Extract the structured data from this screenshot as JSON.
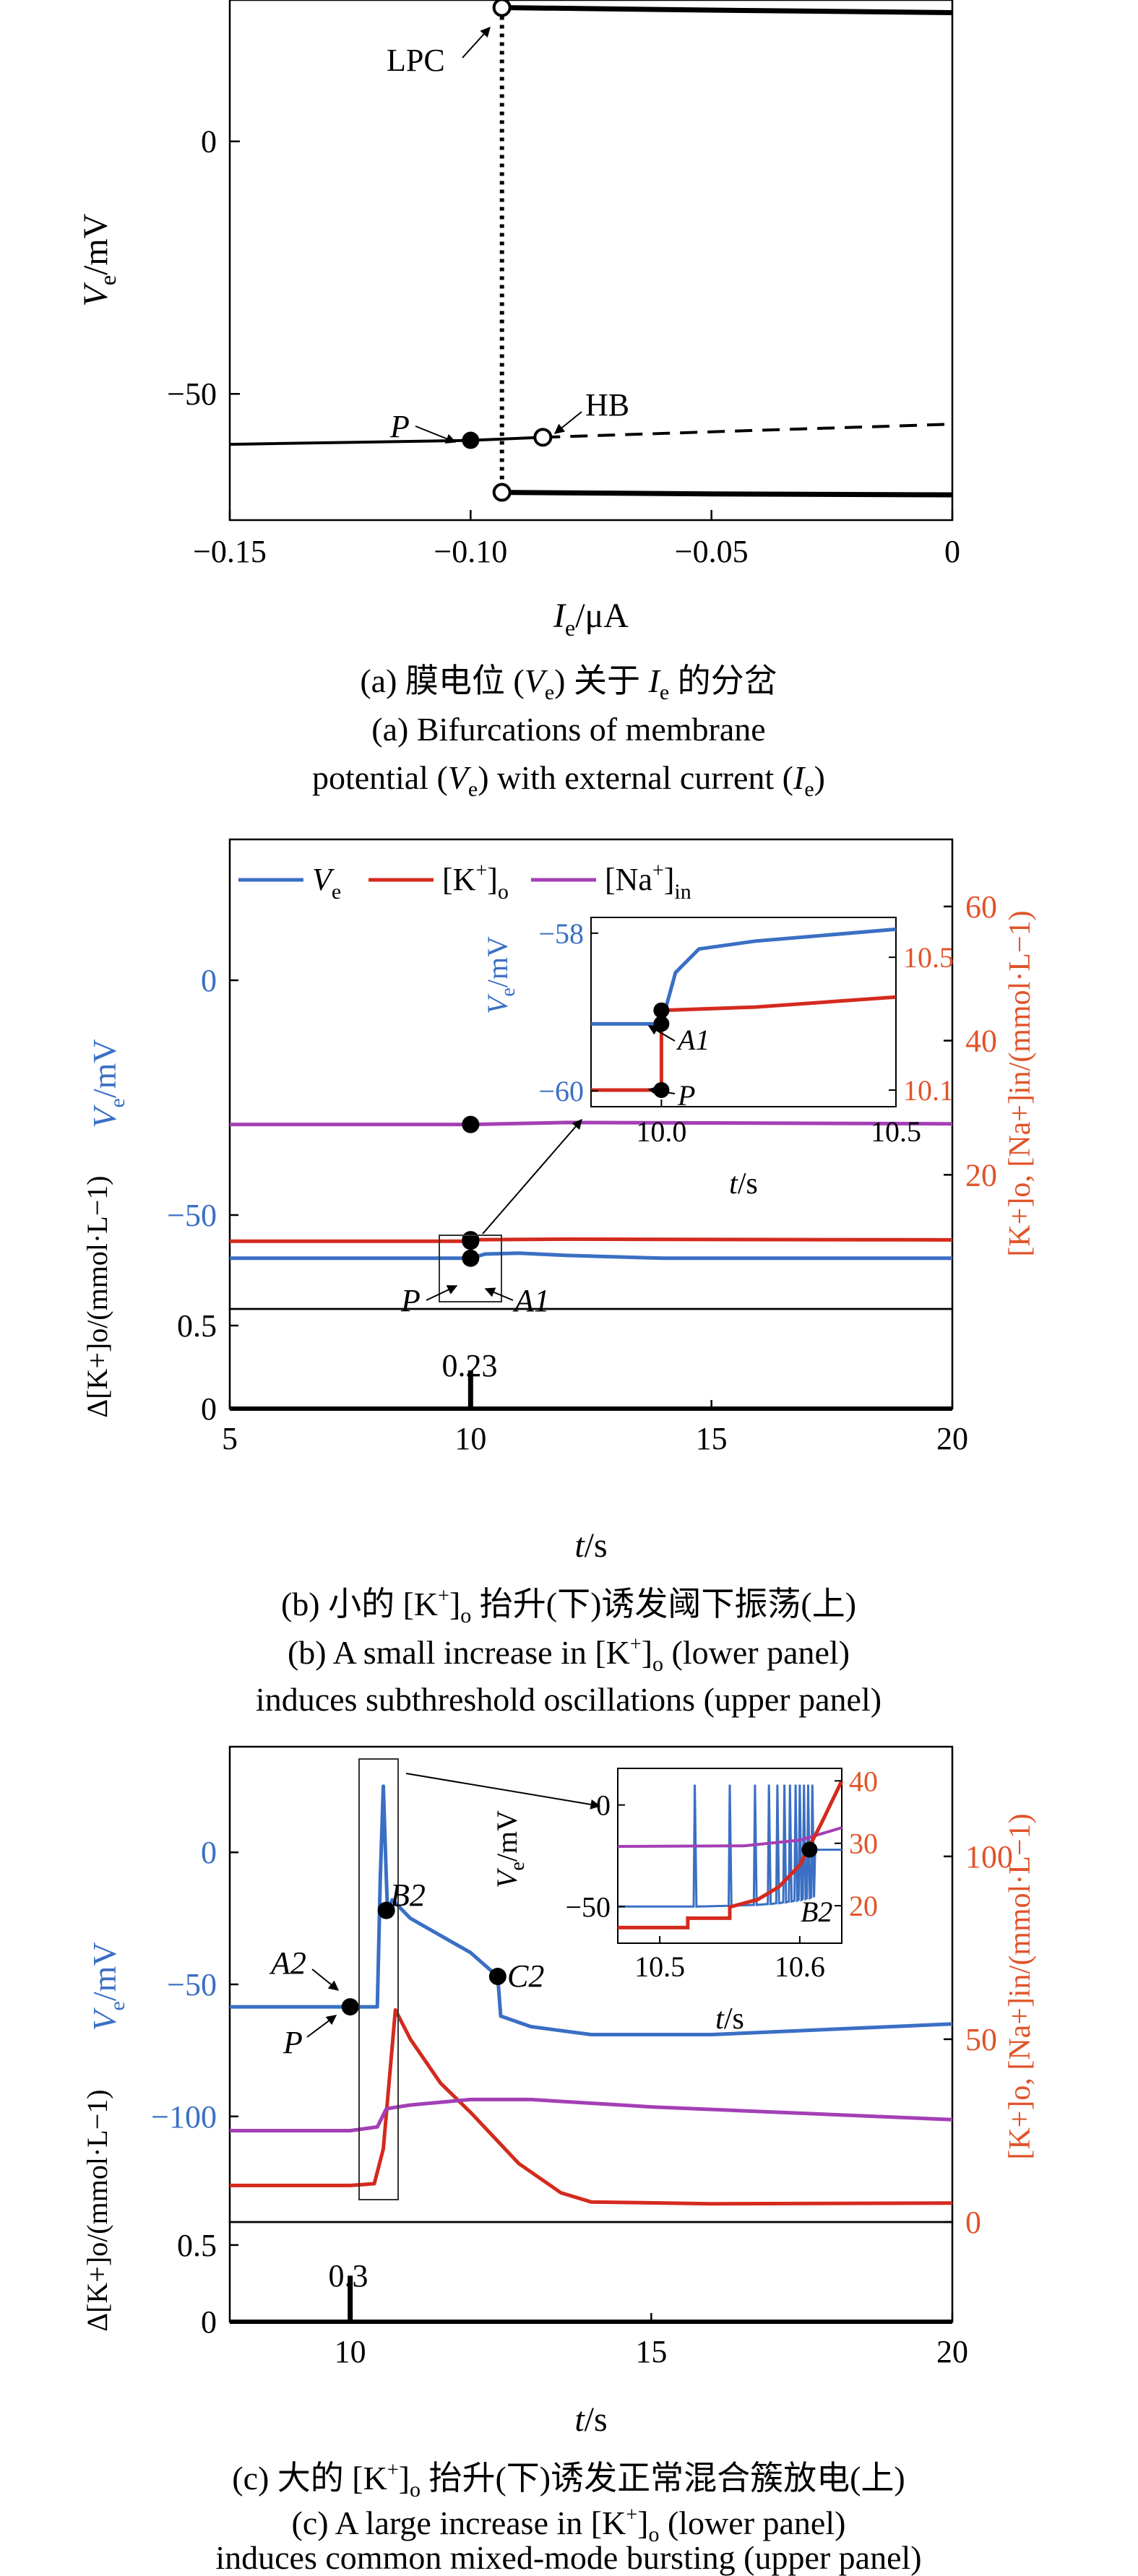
{
  "colors": {
    "ve": "#3a6fc4",
    "ko": "#d42a1e",
    "na": "#a33fb5",
    "black": "#000000",
    "right_axis": "#e0542a"
  },
  "chart_data": [
    {
      "type": "line",
      "panel": "a",
      "xlabel_main": "I",
      "xlabel_sub": "e",
      "xlabel_unit": "/μA",
      "ylabel_main": "V",
      "ylabel_sub": "e",
      "ylabel_unit": "/mV",
      "xlim": [
        -0.15,
        0
      ],
      "ylim": [
        -75,
        28
      ],
      "xticks": [
        -0.15,
        -0.1,
        -0.05,
        0
      ],
      "xtick_labels": [
        "−0.15",
        "−0.10",
        "−0.05",
        "0"
      ],
      "yticks": [
        0,
        -50
      ],
      "ytick_labels": [
        "0",
        "−50"
      ],
      "series": [
        {
          "style": "stable-rest",
          "x": [
            -0.15,
            -0.1,
            -0.085
          ],
          "y": [
            -60,
            -59.2,
            -58.6
          ]
        },
        {
          "style": "unstable-rest",
          "x": [
            -0.085,
            -0.04,
            0
          ],
          "y": [
            -58.6,
            -57.2,
            -56
          ]
        },
        {
          "style": "max-stable",
          "x": [
            -0.0935,
            -0.05,
            0
          ],
          "y": [
            26.5,
            26,
            25.5
          ]
        },
        {
          "style": "min-stable",
          "x": [
            -0.0935,
            -0.05,
            0
          ],
          "y": [
            -69.5,
            -69.8,
            -70
          ]
        },
        {
          "style": "unstable-cycle",
          "x": [
            -0.0935,
            -0.0935
          ],
          "y": [
            26.5,
            -69.5
          ]
        }
      ],
      "points": [
        {
          "label": "LPC",
          "x": -0.0935,
          "y": 26.5,
          "marker": "open"
        },
        {
          "label": "P",
          "x": -0.1,
          "y": -59.2,
          "marker": "filled"
        },
        {
          "label": "HB",
          "x": -0.085,
          "y": -58.6,
          "marker": "open"
        },
        {
          "label": "",
          "x": -0.0935,
          "y": -69.5,
          "marker": "open"
        }
      ],
      "caption_zh_prefix": "(a) 膜电位 (",
      "caption_zh_var": "V",
      "caption_zh_sub": "e",
      "caption_zh_mid": ") 关于 ",
      "caption_zh_var2": "I",
      "caption_zh_sub2": "e",
      "caption_zh_suffix": " 的分岔",
      "caption_en_1": "(a) Bifurcations of membrane",
      "caption_en_2a": "potential (",
      "caption_en_2b": "V",
      "caption_en_2c": "e",
      "caption_en_2d": ") with external current (",
      "caption_en_2e": "I",
      "caption_en_2f": "e",
      "caption_en_2g": ")"
    },
    {
      "type": "line",
      "panel": "b",
      "legend": [
        "V",
        "[K",
        "[Na"
      ],
      "legend_sub": [
        "e",
        "o",
        "in"
      ],
      "legend_sup": [
        "",
        "+",
        "+"
      ],
      "xlim": [
        5,
        20
      ],
      "xticks": [
        5,
        10,
        15,
        20
      ],
      "xtick_labels": [
        "5",
        "10",
        "15",
        "20"
      ],
      "upper": {
        "ylim_left": [
          -70,
          30
        ],
        "yticks_left": [
          0,
          -50
        ],
        "ytick_labels_left": [
          "0",
          "−50"
        ],
        "ylim_right": [
          0,
          70
        ],
        "yticks_right": [
          20,
          40,
          60
        ],
        "ytick_labels_right": [
          "20",
          "40",
          "60"
        ],
        "ylabel_left": "V",
        "ylabel_left_sub": "e",
        "ylabel_left_unit": "/mV",
        "ylabel_right": "[K+]o, [Na+]in/(mmol·L−1)",
        "series": [
          {
            "name": "Ve",
            "x": [
              5,
              10,
              10.3,
              11,
              12,
              14,
              16,
              20
            ],
            "y": [
              -59.2,
              -59.2,
              -58.3,
              -58.1,
              -58.6,
              -59.2,
              -59.2,
              -59.2
            ]
          },
          {
            "name": "[K+]o",
            "x": [
              5,
              10,
              10.2,
              12,
              20
            ],
            "y": [
              10.1,
              10.1,
              10.33,
              10.4,
              10.3
            ]
          },
          {
            "name": "[Na+]in",
            "x": [
              5,
              10,
              12,
              20
            ],
            "y": [
              27.5,
              27.5,
              27.8,
              27.6
            ]
          }
        ],
        "points": [
          {
            "label": "P",
            "series": "[K+]o",
            "x": 10,
            "y": 10.1
          },
          {
            "label": "A1",
            "series": "[K+]o",
            "x": 10,
            "y": 10.33
          },
          {
            "label": "",
            "series": "Ve",
            "x": 10,
            "y": -59.2
          },
          {
            "label": "",
            "series": "[Na+]in",
            "x": 10,
            "y": 27.5
          }
        ],
        "inset": {
          "xlim": [
            9.85,
            10.5
          ],
          "xticks": [
            10.0,
            10.5
          ],
          "xtick_labels": [
            "10.0",
            "10.5"
          ],
          "ylim_left": [
            -60.2,
            -57.8
          ],
          "yticks_left": [
            -58,
            -60
          ],
          "ytick_labels_left": [
            "−58",
            "−60"
          ],
          "ylim_right": [
            10.05,
            10.62
          ],
          "yticks_right": [
            10.5,
            10.1
          ],
          "ytick_labels_right": [
            "10.5",
            "10.1"
          ],
          "xlabel": "t",
          "xlabel_unit": "/s",
          "ve": {
            "x": [
              9.85,
              10.0,
              10.03,
              10.08,
              10.2,
              10.5
            ],
            "y": [
              -59.15,
              -59.15,
              -58.5,
              -58.2,
              -58.1,
              -57.95
            ]
          },
          "ko": {
            "x": [
              9.85,
              10.0,
              10.0,
              10.2,
              10.5
            ],
            "y": [
              10.1,
              10.1,
              10.34,
              10.35,
              10.38
            ]
          },
          "points": [
            {
              "label": "",
              "axis": "left",
              "x": 10.0,
              "y": -59.15
            },
            {
              "label": "A1",
              "axis": "right",
              "x": 10.0,
              "y": 10.34
            },
            {
              "label": "P",
              "axis": "right",
              "x": 10.0,
              "y": 10.1
            }
          ]
        }
      },
      "lower": {
        "ylabel": "Δ[K+]o/(mmol·L−1)",
        "ylim": [
          0,
          0.6
        ],
        "yticks": [
          0,
          0.5
        ],
        "ytick_labels": [
          "0",
          "0.5"
        ],
        "pulse": {
          "x": 10,
          "value": 0.23,
          "label": "0.23"
        }
      },
      "xlabel": "t",
      "xlabel_unit": "/s",
      "caption_zh_a": "(b) 小的 [K",
      "caption_zh_b": "+",
      "caption_zh_c": "]",
      "caption_zh_d": "o",
      "caption_zh_e": " 抬升(下)诱发阈下振荡(上)",
      "caption_en_1a": "(b) A small increase in [K",
      "caption_en_1b": "+",
      "caption_en_1c": "]",
      "caption_en_1d": "o",
      "caption_en_1e": " (lower panel)",
      "caption_en_2": "induces subthreshold oscillations (upper panel)"
    },
    {
      "type": "line",
      "panel": "c",
      "xlim": [
        8,
        20
      ],
      "xticks": [
        10,
        15,
        20
      ],
      "xtick_labels": [
        "10",
        "15",
        "20"
      ],
      "upper": {
        "ylim_left": [
          -140,
          40
        ],
        "yticks_left": [
          0,
          -50,
          -100
        ],
        "ytick_labels_left": [
          "0",
          "−50",
          "−100"
        ],
        "ylim_right": [
          0,
          130
        ],
        "yticks_right": [
          0,
          50,
          100
        ],
        "ytick_labels_right": [
          "0",
          "50",
          "100"
        ],
        "ylabel_left": "V",
        "ylabel_left_sub": "e",
        "ylabel_left_unit": "/mV",
        "ylabel_right": "[K+]o, [Na+]in/(mmol·L−1)",
        "series": [
          {
            "name": "Ve",
            "x": [
              8,
              10,
              10.45,
              10.5,
              10.55,
              10.6,
              10.62,
              10.7,
              11,
              12,
              12.45,
              12.5,
              13,
              14,
              16,
              20
            ],
            "y": [
              -58.5,
              -58.5,
              -58.5,
              -10,
              25,
              -10,
              -22,
              -18,
              -25,
              -38,
              -47,
              -62,
              -66,
              -69,
              -69,
              -65
            ]
          },
          {
            "name": "[K+]o",
            "x": [
              8,
              10,
              10.4,
              10.55,
              10.75,
              11,
              11.5,
              12,
              12.8,
              13.5,
              14,
              16,
              20
            ],
            "y": [
              10,
              10,
              10.5,
              20,
              58,
              50,
              38,
              30,
              16,
              8,
              5.5,
              5,
              5.2
            ]
          },
          {
            "name": "[Na+]in",
            "x": [
              8,
              10,
              10.45,
              10.6,
              11,
              12,
              13,
              15,
              20
            ],
            "y": [
              25,
              25,
              26,
              31,
              32,
              33.5,
              33.5,
              31.5,
              28
            ]
          }
        ],
        "points": [
          {
            "label": "P",
            "series": "Ve",
            "x": 10,
            "y": -58.5
          },
          {
            "label": "A2",
            "series": "Ve",
            "x": 10,
            "y": -58.5
          },
          {
            "label": "B2",
            "series": "Ve",
            "x": 10.6,
            "y": -22
          },
          {
            "label": "C2",
            "series": "Ve",
            "x": 12.45,
            "y": -47
          }
        ],
        "inset": {
          "xlim": [
            10.47,
            10.63
          ],
          "xticks": [
            10.5,
            10.6
          ],
          "xtick_labels": [
            "10.5",
            "10.6"
          ],
          "ylim_left": [
            -68,
            18
          ],
          "yticks_left": [
            0,
            -50
          ],
          "ytick_labels_left": [
            "0",
            "−50"
          ],
          "ylim_right": [
            14,
            42
          ],
          "yticks_right": [
            20,
            30,
            40
          ],
          "ytick_labels_right": [
            "20",
            "30",
            "40"
          ],
          "xlabel": "t",
          "xlabel_unit": "/s",
          "spike_times": [
            10.525,
            10.55,
            10.568,
            10.578,
            10.584,
            10.589,
            10.593,
            10.597,
            10.6,
            10.603,
            10.606,
            10.609
          ],
          "ve_baseline_start": -50,
          "ve_baseline_end": -45,
          "ve_after": -22,
          "ko_x": [
            10.47,
            10.52,
            10.52,
            10.55,
            10.55,
            10.57,
            10.585,
            10.6,
            10.615,
            10.63
          ],
          "ko_y": [
            16.5,
            16.5,
            18,
            18,
            19.8,
            21,
            23,
            26.5,
            33,
            40
          ],
          "na_x": [
            10.47,
            10.56,
            10.6,
            10.63
          ],
          "na_y": [
            29.5,
            29.6,
            30.5,
            32.5
          ],
          "points": [
            {
              "label": "B2",
              "x": 10.607,
              "y": -22
            }
          ]
        }
      },
      "lower": {
        "ylabel": "Δ[K+]o/(mmol·L−1)",
        "ylim": [
          0,
          0.65
        ],
        "yticks": [
          0,
          0.5
        ],
        "ytick_labels": [
          "0",
          "0.5"
        ],
        "pulse": {
          "x": 10,
          "value": 0.3,
          "label": "0.3"
        }
      },
      "xlabel": "t",
      "xlabel_unit": "/s",
      "caption_zh_a": "(c) 大的 [K",
      "caption_zh_b": "+",
      "caption_zh_c": "]",
      "caption_zh_d": "o",
      "caption_zh_e": " 抬升(下)诱发正常混合簇放电(上)",
      "caption_en_1a": "(c) A large increase in [K",
      "caption_en_1b": "+",
      "caption_en_1c": "]",
      "caption_en_1d": "o",
      "caption_en_1e": " (lower panel)",
      "caption_en_2": "induces common mixed-mode bursting (upper panel)"
    }
  ]
}
